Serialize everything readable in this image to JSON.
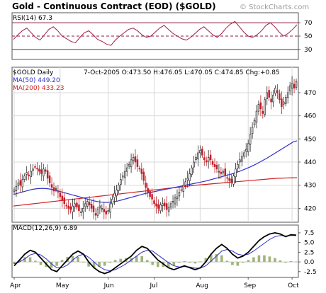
{
  "header": {
    "title": "Gold - Continuous Contract (EOD) ($GOLD)",
    "watermark": "© StockCharts.com"
  },
  "colors": {
    "candle_up": "#2a2a2a",
    "candle_down": "#c0202a",
    "ma50": "#3030c8",
    "ma200": "#d02020",
    "rsi_line": "#a0204a",
    "rsi_fill": "#c8906a",
    "macd_line": "#000000",
    "signal_line": "#3030c8",
    "hist": "#a0b478"
  },
  "chart_data": [
    {
      "type": "line",
      "panel": "rsi",
      "label": "RSI(14) 67.3",
      "ylim": [
        15,
        85
      ],
      "yticks": [
        70,
        50,
        30
      ],
      "grid": true,
      "series": [
        {
          "name": "RSI(14)",
          "values": [
            45,
            52,
            58,
            62,
            55,
            48,
            44,
            52,
            60,
            64,
            58,
            50,
            46,
            42,
            40,
            48,
            55,
            58,
            52,
            45,
            42,
            38,
            36,
            44,
            50,
            55,
            60,
            62,
            58,
            52,
            48,
            50,
            56,
            62,
            66,
            60,
            54,
            50,
            46,
            44,
            48,
            54,
            60,
            64,
            58,
            52,
            48,
            54,
            62,
            68,
            72,
            64,
            56,
            50,
            48,
            52,
            58,
            66,
            70,
            64,
            56,
            50,
            54,
            60,
            67
          ]
        }
      ]
    },
    {
      "type": "candlestick",
      "panel": "price",
      "legend": "$GOLD Daily",
      "ohlc_label": "7-Oct-2005 O:473.50 H:476.05 L:470.05 C:474.85 Chg:+0.85",
      "ma_labels": [
        "MA(50) 449.20",
        "MA(200) 433.23"
      ],
      "ylim": [
        414,
        481
      ],
      "yticks": [
        420,
        430,
        440,
        450,
        460,
        470
      ],
      "x_tick_labels": [
        "Apr",
        "May",
        "Jun",
        "Jul",
        "Aug",
        "Sep",
        "Oct"
      ],
      "x_tick_index": [
        0,
        22,
        45,
        67,
        89,
        112,
        133
      ],
      "closes": [
        428,
        429.5,
        431,
        430,
        432.5,
        434,
        435.5,
        434,
        436,
        437,
        438,
        437,
        436,
        435,
        437,
        436,
        433,
        431,
        429,
        427.5,
        428.5,
        427,
        425,
        423.5,
        422,
        421,
        420,
        419.5,
        421,
        422,
        420.5,
        419,
        418.5,
        420,
        422,
        423,
        421.5,
        420,
        418.5,
        417,
        419.5,
        421,
        420,
        418.5,
        417.5,
        419,
        422,
        424,
        426.5,
        428,
        430,
        432.5,
        434,
        436,
        437.5,
        439,
        441,
        442,
        440,
        438,
        437,
        435,
        432,
        429,
        427,
        425,
        424,
        422,
        421,
        420,
        421.5,
        422,
        421,
        419.5,
        420.5,
        422,
        423,
        424.5,
        425,
        427,
        428,
        430,
        431.5,
        433,
        435,
        437.5,
        440,
        442,
        444,
        445,
        443,
        441,
        440,
        442,
        441,
        439,
        438,
        437,
        436,
        435,
        436,
        434,
        433,
        432,
        431.5,
        434,
        437,
        439,
        441,
        442.5,
        444,
        445.5,
        448,
        452,
        455,
        458,
        462,
        465,
        463,
        461,
        467,
        470,
        468,
        466,
        469,
        472,
        470,
        467,
        464,
        466,
        468,
        470,
        473,
        474,
        472,
        474.85
      ],
      "ma50": [
        426,
        426.4,
        426.8,
        427.2,
        427.6,
        428,
        428.3,
        428.5,
        428.6,
        428.6,
        428.5,
        428.3,
        428,
        427.6,
        427.2,
        426.8,
        426.4,
        426,
        425.6,
        425.2,
        424.8,
        424.4,
        424,
        423.6,
        423.2,
        422.9,
        422.7,
        422.6,
        422.6,
        422.7,
        422.9,
        423.2,
        423.6,
        424,
        424.4,
        424.8,
        425.2,
        425.6,
        426,
        426.4,
        426.7,
        427,
        427.3,
        427.6,
        427.9,
        428.2,
        428.5,
        428.8,
        429.1,
        429.4,
        429.7,
        430,
        430.3,
        430.6,
        430.9,
        431.2,
        431.5,
        431.8,
        432.2,
        432.6,
        433,
        433.4,
        433.8,
        434.2,
        434.6,
        435,
        435.5,
        436,
        436.6,
        437.2,
        437.8,
        438.5,
        439.2,
        440,
        440.8,
        441.6,
        442.5,
        443.4,
        444.3,
        445.2,
        446.1,
        447,
        447.9,
        448.8,
        449.2
      ],
      "ma50_start": 50,
      "ma200": [
        421,
        421.2,
        421.4,
        421.6,
        421.8,
        422,
        422.2,
        422.4,
        422.6,
        422.8,
        423,
        423.2,
        423.4,
        423.6,
        423.8,
        424,
        424.2,
        424.4,
        424.6,
        424.8,
        425,
        425.2,
        425.4,
        425.6,
        425.8,
        426,
        426.2,
        426.4,
        426.6,
        426.8,
        427,
        427.2,
        427.4,
        427.6,
        427.8,
        428,
        428.2,
        428.4,
        428.6,
        428.8,
        429,
        429.2,
        429.4,
        429.6,
        429.8,
        430,
        430.15,
        430.3,
        430.45,
        430.6,
        430.75,
        430.9,
        431.05,
        431.2,
        431.35,
        431.5,
        431.65,
        431.8,
        431.95,
        432.1,
        432.25,
        432.4,
        432.55,
        432.7,
        432.85,
        433,
        433.05,
        433.1,
        433.15,
        433.2,
        433.23
      ]
    },
    {
      "type": "line",
      "panel": "macd",
      "label": "MACD(12,26,9) 6.89",
      "ylim": [
        -4,
        9.5
      ],
      "yticks": [
        7.5,
        5.0,
        2.5,
        0.0,
        -2.5
      ],
      "series": [
        {
          "name": "MACD(12,26,9)",
          "values": [
            -1,
            0.5,
            2,
            3,
            2.5,
            1,
            -0.5,
            -2,
            -2.5,
            -1,
            0.5,
            2,
            2.8,
            2,
            0,
            -1.5,
            -2.5,
            -3,
            -2.5,
            -1.5,
            -0.5,
            0.5,
            1.5,
            3,
            4,
            3.5,
            2,
            0.5,
            -0.5,
            -1.5,
            -2,
            -1.5,
            -1,
            -1.5,
            -2,
            -1.5,
            0,
            2,
            3.5,
            4.5,
            3.5,
            2,
            1,
            1.5,
            2.5,
            4,
            5.5,
            6.5,
            7.2,
            7.5,
            7.2,
            6.5,
            7,
            6.89
          ]
        },
        {
          "name": "Signal",
          "values": [
            -0.5,
            0,
            0.8,
            1.8,
            2.2,
            1.8,
            0.8,
            -0.5,
            -1.5,
            -1.5,
            -0.8,
            0.5,
            1.5,
            2,
            1.2,
            0,
            -1.2,
            -2,
            -2.3,
            -2,
            -1.3,
            -0.5,
            0.5,
            1.5,
            2.5,
            3,
            2.8,
            1.8,
            0.8,
            -0.2,
            -1,
            -1.3,
            -1.2,
            -1.3,
            -1.6,
            -1.6,
            -1,
            0.2,
            1.5,
            2.8,
            3.2,
            2.8,
            2,
            1.7,
            2,
            2.8,
            3.8,
            4.8,
            5.8,
            6.5,
            6.8,
            6.7,
            6.8,
            6.8
          ]
        }
      ]
    }
  ]
}
